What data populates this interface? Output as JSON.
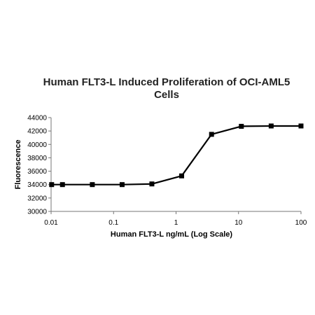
{
  "chart_data": {
    "type": "line",
    "title": [
      "Human FLT3-L Induced Proliferation of OCI-AML5",
      "Cells"
    ],
    "xlabel": "Human FLT3-L ng/mL (Log Scale)",
    "ylabel": "Fluorescence",
    "xscale": "log",
    "xlim": [
      0.01,
      100
    ],
    "ylim": [
      30000,
      44000
    ],
    "xticks": [
      0.01,
      0.1,
      1,
      10,
      100
    ],
    "xtick_labels": [
      "0.01",
      "0.1",
      "1",
      "10",
      "100"
    ],
    "yticks": [
      30000,
      32000,
      34000,
      36000,
      38000,
      40000,
      42000,
      44000
    ],
    "ytick_labels": [
      "30000",
      "32000",
      "34000",
      "36000",
      "38000",
      "40000",
      "42000",
      "44000"
    ],
    "grid": false,
    "legend": "none",
    "series": [
      {
        "marker": "square",
        "color": "#000000",
        "x": [
          0.0102,
          0.0152,
          0.0457,
          0.137,
          0.41,
          1.23,
          3.7,
          11.1,
          33.3,
          100
        ],
        "y": [
          34000,
          34000,
          34000,
          34000,
          34100,
          35300,
          41500,
          42700,
          42750,
          42750
        ]
      }
    ]
  }
}
